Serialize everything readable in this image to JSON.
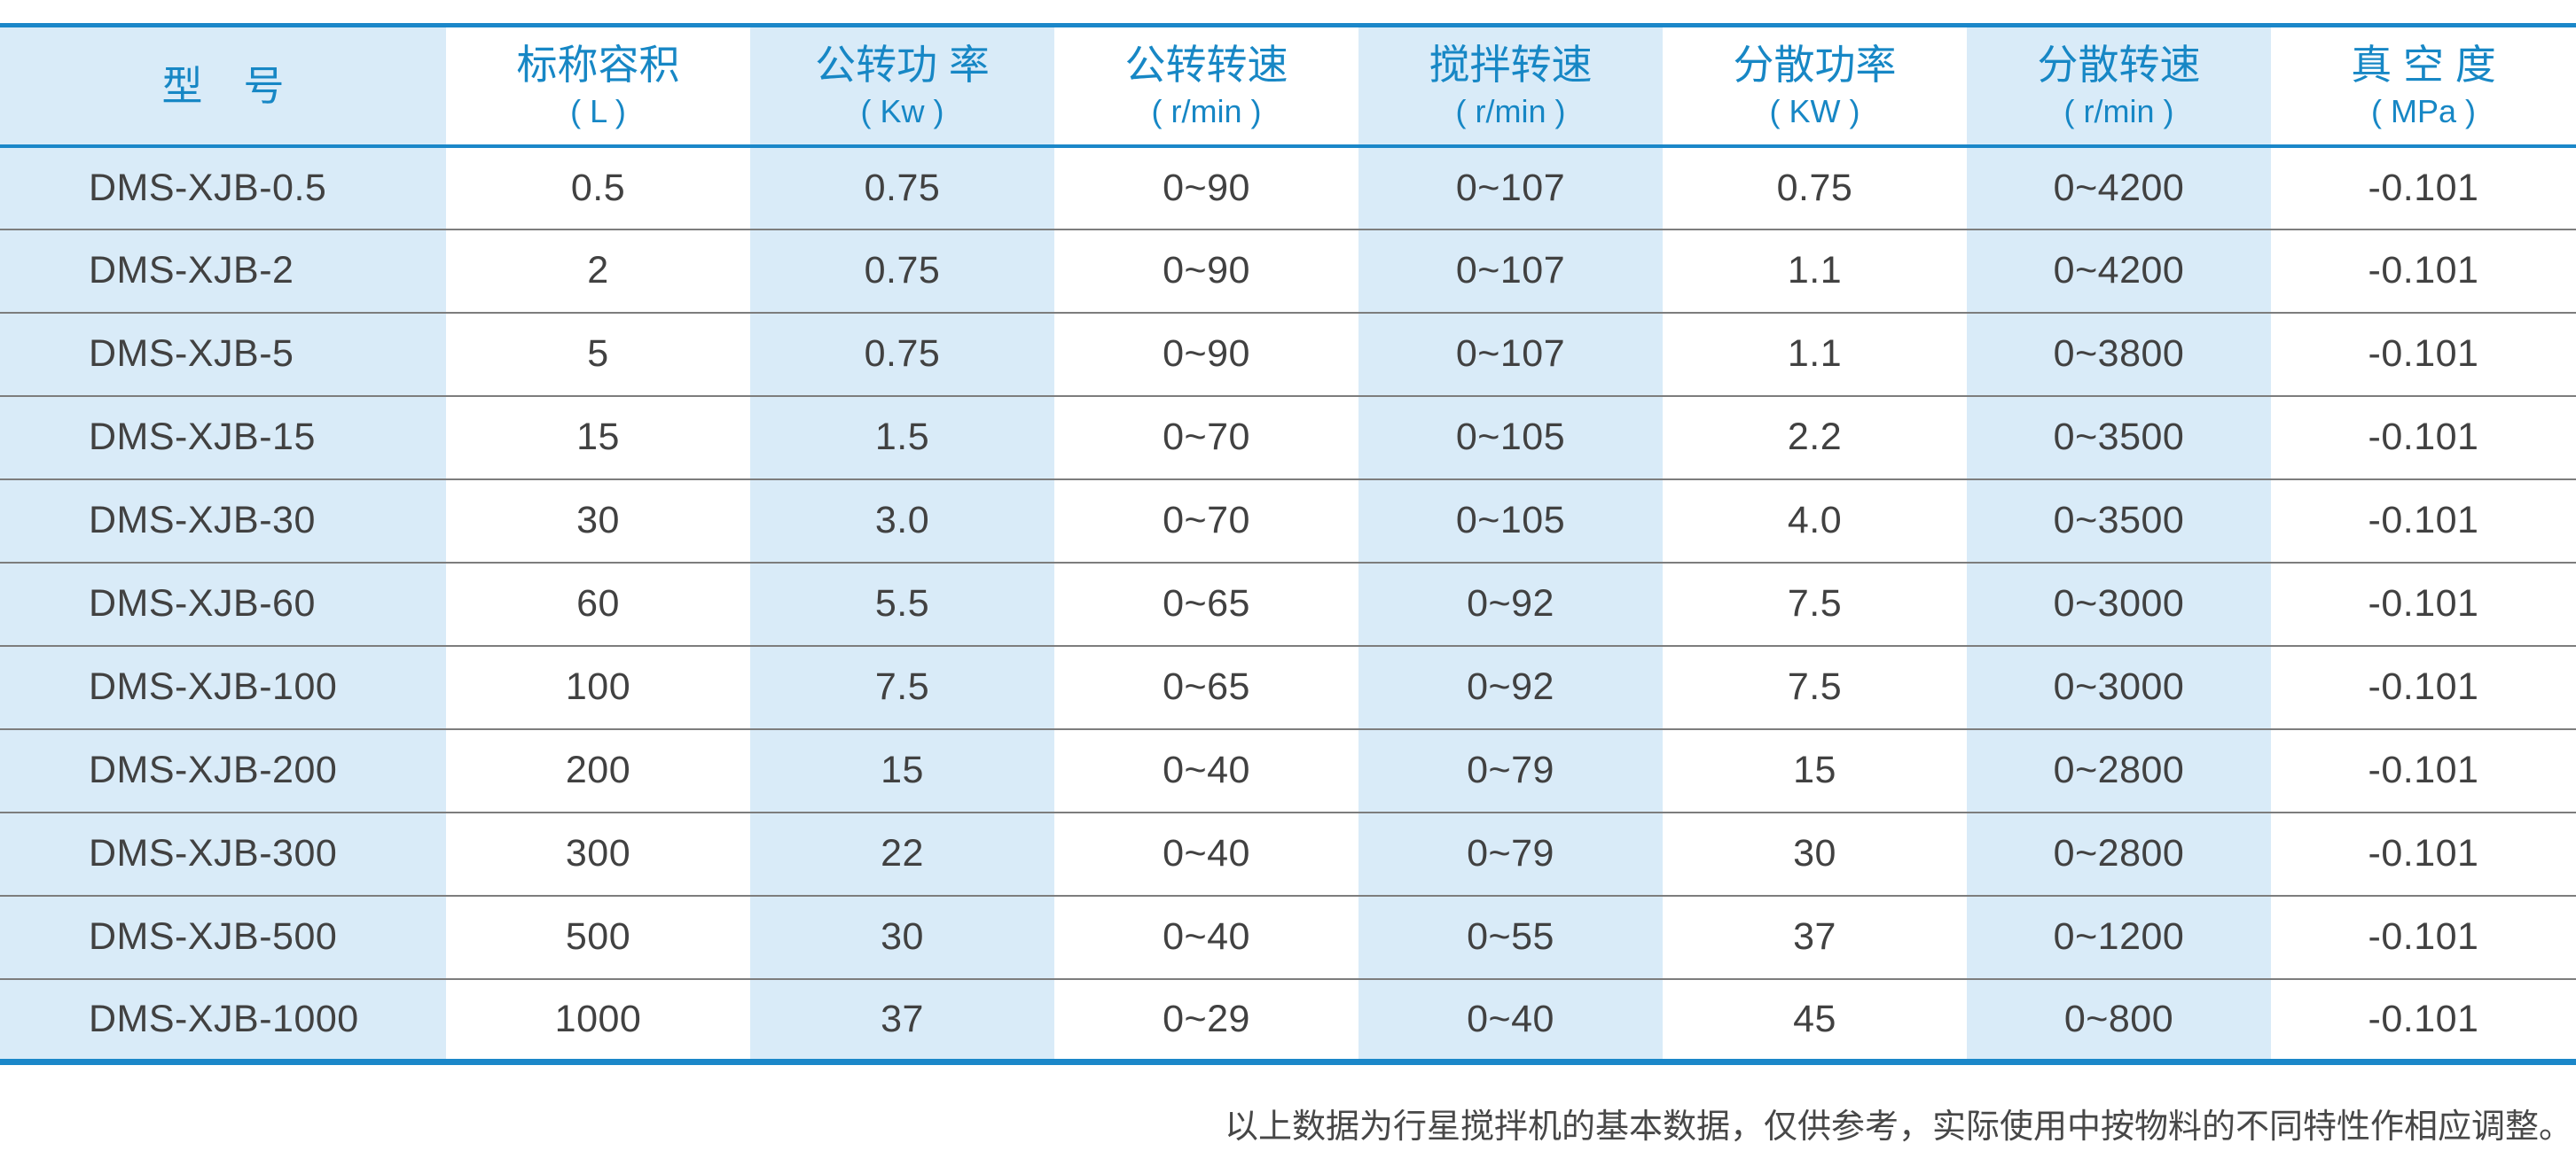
{
  "colors": {
    "accent": "#1b87c9",
    "stripe": "#d9ebf8",
    "header_text": "#1787c5",
    "body_text": "#414141",
    "separator": "#7d7d7d",
    "footnote_text": "#474747",
    "background": "#ffffff"
  },
  "table": {
    "columns": [
      {
        "title": "型　号",
        "unit": ""
      },
      {
        "title": "标称容积",
        "unit": "( L )"
      },
      {
        "title": "公转功 率",
        "unit": "( Kw )"
      },
      {
        "title": "公转转速",
        "unit": "( r/min )"
      },
      {
        "title": "搅拌转速",
        "unit": "( r/min )"
      },
      {
        "title": "分散功率",
        "unit": "( KW )"
      },
      {
        "title": "分散转速",
        "unit": "( r/min )"
      },
      {
        "title": "真 空 度",
        "unit": "( MPa )"
      }
    ],
    "rows": [
      [
        "DMS-XJB-0.5",
        "0.5",
        "0.75",
        "0~90",
        "0~107",
        "0.75",
        "0~4200",
        "-0.101"
      ],
      [
        "DMS-XJB-2",
        "2",
        "0.75",
        "0~90",
        "0~107",
        "1.1",
        "0~4200",
        "-0.101"
      ],
      [
        "DMS-XJB-5",
        "5",
        "0.75",
        "0~90",
        "0~107",
        "1.1",
        "0~3800",
        "-0.101"
      ],
      [
        "DMS-XJB-15",
        "15",
        "1.5",
        "0~70",
        "0~105",
        "2.2",
        "0~3500",
        "-0.101"
      ],
      [
        "DMS-XJB-30",
        "30",
        "3.0",
        "0~70",
        "0~105",
        "4.0",
        "0~3500",
        "-0.101"
      ],
      [
        "DMS-XJB-60",
        "60",
        "5.5",
        "0~65",
        "0~92",
        "7.5",
        "0~3000",
        "-0.101"
      ],
      [
        "DMS-XJB-100",
        "100",
        "7.5",
        "0~65",
        "0~92",
        "7.5",
        "0~3000",
        "-0.101"
      ],
      [
        "DMS-XJB-200",
        "200",
        "15",
        "0~40",
        "0~79",
        "15",
        "0~2800",
        "-0.101"
      ],
      [
        "DMS-XJB-300",
        "300",
        "22",
        "0~40",
        "0~79",
        "30",
        "0~2800",
        "-0.101"
      ],
      [
        "DMS-XJB-500",
        "500",
        "30",
        "0~40",
        "0~55",
        "37",
        "0~1200",
        "-0.101"
      ],
      [
        "DMS-XJB-1000",
        "1000",
        "37",
        "0~29",
        "0~40",
        "45",
        "0~800",
        "-0.101"
      ]
    ]
  },
  "footer": {
    "note": "以上数据为行星搅拌机的基本数据，仅供参考，实际使用中按物料的不同特性作相应调整。"
  }
}
